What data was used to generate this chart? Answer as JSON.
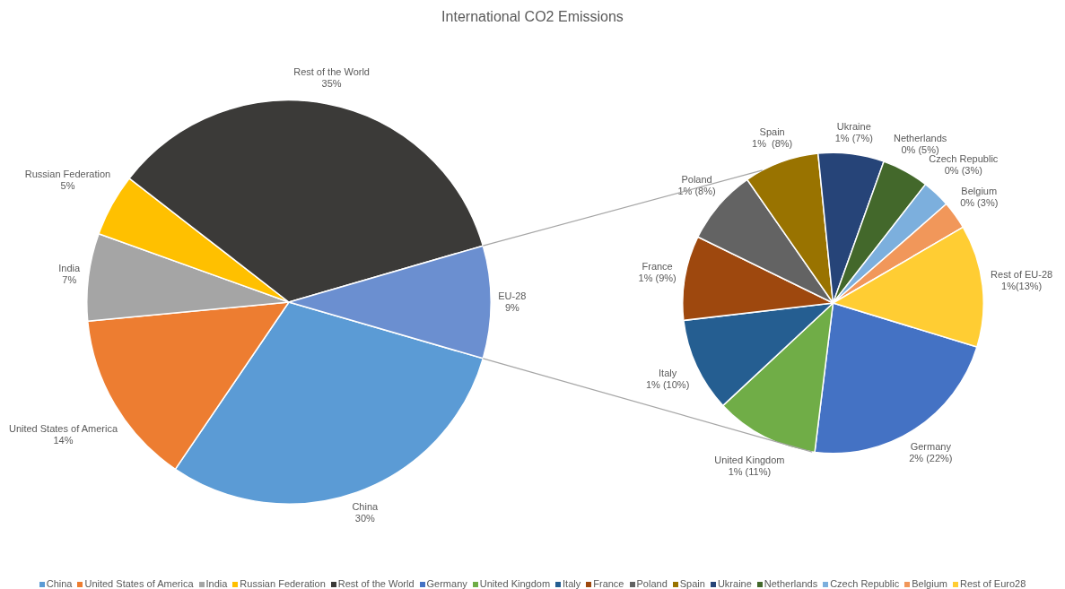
{
  "chart_data": [
    {
      "type": "pie",
      "title": "International CO2 Emissions",
      "legend": "bottom",
      "categories": [
        "China",
        "United States of America",
        "India",
        "Russian Federation",
        "Rest of the World",
        null
      ],
      "values": [
        30,
        14,
        7,
        5,
        35,
        9
      ],
      "colors": [
        "#5b9bd5",
        "#ed7d31",
        "#a5a5a5",
        "#ffc000",
        "#3b3a38",
        "#6b8fd0"
      ],
      "value_labels": [
        "China\n30%",
        "United States of America\n14%",
        "India\n7%",
        "Russian Federation\n5%",
        "Rest of the World\n35%",
        "EU-28\n9%"
      ]
    },
    {
      "type": "pie",
      "legend": "bottom",
      "categories": [
        "Germany",
        "United Kingdom",
        "Italy",
        "France",
        "Poland",
        "Spain",
        "Ukraine",
        "Netherlands",
        "Czech Republic",
        "Belgium",
        "Rest of Euro28"
      ],
      "values": [
        22,
        11,
        10,
        9,
        8,
        8,
        7,
        5,
        3,
        3,
        13
      ],
      "colors": [
        "#4472c4",
        "#70ad47",
        "#255e91",
        "#9e480e",
        "#636363",
        "#997300",
        "#264478",
        "#43682b",
        "#7cafdd",
        "#f1975a",
        "#ffcd33"
      ],
      "value_labels": [
        "Germany\n2% (22%)",
        "United Kingdom\n1% (11%)",
        "Italy\n1% (10%)",
        "France\n1% (9%)",
        "Poland\n1% (8%)",
        "Spain\n1%  (8%)",
        "Ukraine\n1% (7%)",
        "Netherlands\n0% (5%)",
        "Czech Republic\n0% (3%)",
        "Belgium\n0% (3%)",
        "Rest of EU-28\n1%(13%)"
      ]
    }
  ]
}
